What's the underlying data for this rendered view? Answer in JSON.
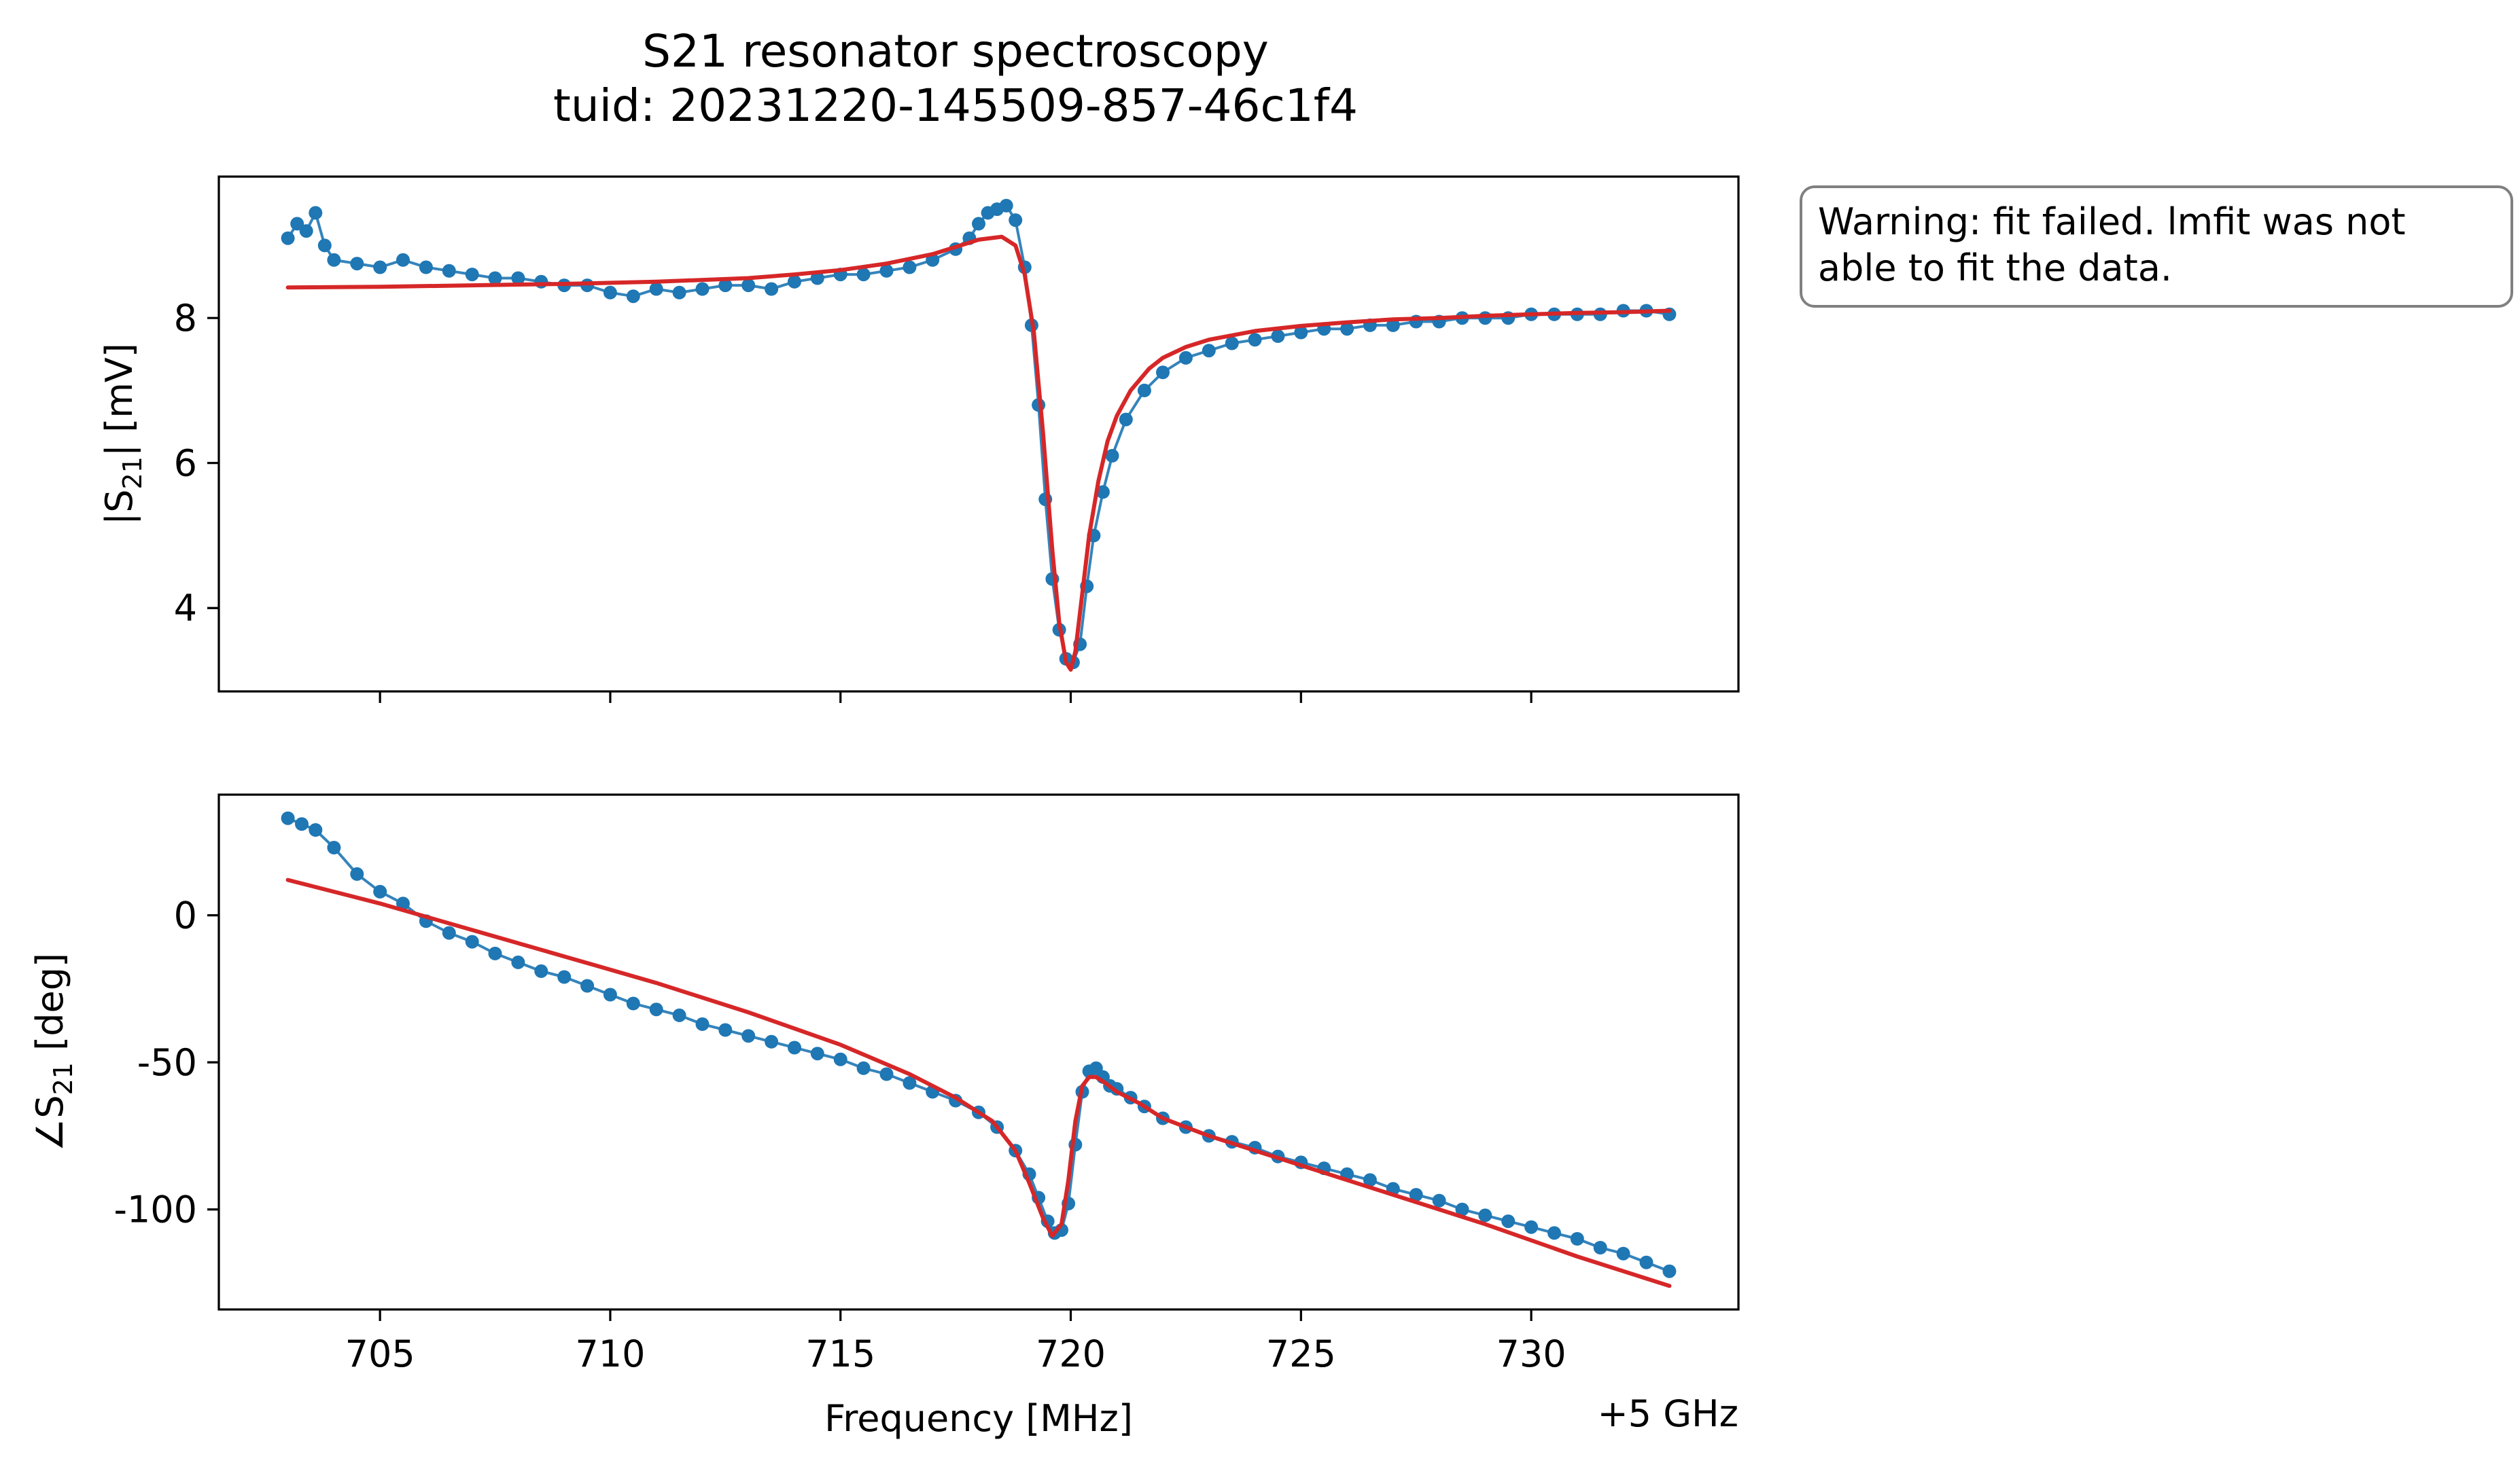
{
  "figure": {
    "title_line1": "S21 resonator spectroscopy",
    "title_line2": "tuid: 20231220-145509-857-46c1f4",
    "warning_line1": "Warning: fit failed. lmfit was not",
    "warning_line2": "able to fit the data.",
    "x_offset_label": "+5 GHz"
  },
  "chart_data": [
    {
      "type": "scatter",
      "panel": "top",
      "title": "",
      "xlabel": "",
      "ylabel_main": "|S",
      "ylabel_sub": "21",
      "ylabel_tail": "| [mV]",
      "xlim": [
        701.5,
        734.5
      ],
      "ylim": [
        2.85,
        9.95
      ],
      "xticks": [
        705,
        710,
        715,
        720,
        725,
        730
      ],
      "show_xticklabels": false,
      "yticks": [
        4,
        6,
        8
      ],
      "yticklabels": [
        "4",
        "6",
        "8"
      ],
      "grid": false,
      "series": [
        {
          "kind": "data",
          "color": "#1f77b4",
          "x": [
            703.0,
            703.2,
            703.4,
            703.6,
            703.8,
            704.0,
            704.5,
            705.0,
            705.5,
            706.0,
            706.5,
            707.0,
            707.5,
            708.0,
            708.5,
            709.0,
            709.5,
            710.0,
            710.5,
            711.0,
            711.5,
            712.0,
            712.5,
            713.0,
            713.5,
            714.0,
            714.5,
            715.0,
            715.5,
            716.0,
            716.5,
            717.0,
            717.5,
            717.8,
            718.0,
            718.2,
            718.4,
            718.6,
            718.8,
            719.0,
            719.15,
            719.3,
            719.45,
            719.6,
            719.75,
            719.9,
            720.05,
            720.2,
            720.35,
            720.5,
            720.7,
            720.9,
            721.2,
            721.6,
            722.0,
            722.5,
            723.0,
            723.5,
            724.0,
            724.5,
            725.0,
            725.5,
            726.0,
            726.5,
            727.0,
            727.5,
            728.0,
            728.5,
            729.0,
            729.5,
            730.0,
            730.5,
            731.0,
            731.5,
            732.0,
            732.5,
            733.0
          ],
          "y": [
            9.1,
            9.3,
            9.2,
            9.45,
            9.0,
            8.8,
            8.75,
            8.7,
            8.8,
            8.7,
            8.65,
            8.6,
            8.55,
            8.55,
            8.5,
            8.45,
            8.45,
            8.35,
            8.3,
            8.4,
            8.35,
            8.4,
            8.45,
            8.45,
            8.4,
            8.5,
            8.55,
            8.6,
            8.6,
            8.65,
            8.7,
            8.8,
            8.95,
            9.1,
            9.3,
            9.45,
            9.5,
            9.55,
            9.35,
            8.7,
            7.9,
            6.8,
            5.5,
            4.4,
            3.7,
            3.3,
            3.25,
            3.5,
            4.3,
            5.0,
            5.6,
            6.1,
            6.6,
            7.0,
            7.25,
            7.45,
            7.55,
            7.65,
            7.7,
            7.75,
            7.8,
            7.85,
            7.85,
            7.9,
            7.9,
            7.95,
            7.95,
            8.0,
            8.0,
            8.0,
            8.05,
            8.05,
            8.05,
            8.05,
            8.1,
            8.1,
            8.05
          ]
        },
        {
          "kind": "fit",
          "color": "#d62728",
          "x": [
            703.0,
            705.0,
            707.0,
            709.0,
            711.0,
            713.0,
            714.0,
            715.0,
            716.0,
            717.0,
            717.5,
            718.0,
            718.5,
            718.8,
            719.0,
            719.2,
            719.4,
            719.6,
            719.75,
            719.9,
            720.0,
            720.1,
            720.25,
            720.4,
            720.6,
            720.8,
            721.0,
            721.3,
            721.7,
            722.0,
            722.5,
            723.0,
            724.0,
            725.0,
            726.0,
            727.0,
            728.0,
            729.0,
            730.0,
            731.0,
            732.0,
            733.0
          ],
          "y": [
            8.42,
            8.43,
            8.45,
            8.47,
            8.5,
            8.55,
            8.6,
            8.66,
            8.75,
            8.88,
            8.98,
            9.08,
            9.12,
            9.0,
            8.6,
            7.8,
            6.4,
            4.8,
            3.8,
            3.25,
            3.15,
            3.4,
            4.2,
            5.0,
            5.75,
            6.3,
            6.65,
            7.0,
            7.3,
            7.45,
            7.6,
            7.7,
            7.82,
            7.89,
            7.94,
            7.98,
            8.0,
            8.03,
            8.05,
            8.07,
            8.08,
            8.1
          ]
        }
      ]
    },
    {
      "type": "scatter",
      "panel": "bottom",
      "title": "",
      "xlabel": "Frequency [MHz]",
      "ylabel_main": "∠S",
      "ylabel_sub": "21",
      "ylabel_tail": " [deg]",
      "xlim": [
        701.5,
        734.5
      ],
      "ylim": [
        -134,
        41
      ],
      "xticks": [
        705,
        710,
        715,
        720,
        725,
        730
      ],
      "xticklabels": [
        "705",
        "710",
        "715",
        "720",
        "725",
        "730"
      ],
      "show_xticklabels": true,
      "yticks": [
        0,
        -50,
        -100
      ],
      "yticklabels": [
        "0",
        "-50",
        "-100"
      ],
      "grid": false,
      "series": [
        {
          "kind": "data",
          "color": "#1f77b4",
          "x": [
            703.0,
            703.3,
            703.6,
            704.0,
            704.5,
            705.0,
            705.5,
            706.0,
            706.5,
            707.0,
            707.5,
            708.0,
            708.5,
            709.0,
            709.5,
            710.0,
            710.5,
            711.0,
            711.5,
            712.0,
            712.5,
            713.0,
            713.5,
            714.0,
            714.5,
            715.0,
            715.5,
            716.0,
            716.5,
            717.0,
            717.5,
            718.0,
            718.4,
            718.8,
            719.1,
            719.3,
            719.5,
            719.65,
            719.8,
            719.95,
            720.1,
            720.25,
            720.4,
            720.55,
            720.7,
            720.85,
            721.0,
            721.3,
            721.6,
            722.0,
            722.5,
            723.0,
            723.5,
            724.0,
            724.5,
            725.0,
            725.5,
            726.0,
            726.5,
            727.0,
            727.5,
            728.0,
            728.5,
            729.0,
            729.5,
            730.0,
            730.5,
            731.0,
            731.5,
            732.0,
            732.5,
            733.0
          ],
          "y": [
            33,
            31,
            29,
            23,
            14,
            8,
            4,
            -2,
            -6,
            -9,
            -13,
            -16,
            -19,
            -21,
            -24,
            -27,
            -30,
            -32,
            -34,
            -37,
            -39,
            -41,
            -43,
            -45,
            -47,
            -49,
            -52,
            -54,
            -57,
            -60,
            -63,
            -67,
            -72,
            -80,
            -88,
            -96,
            -104,
            -108,
            -107,
            -98,
            -78,
            -60,
            -53,
            -52,
            -55,
            -58,
            -59,
            -62,
            -65,
            -69,
            -72,
            -75,
            -77,
            -79,
            -82,
            -84,
            -86,
            -88,
            -90,
            -93,
            -95,
            -97,
            -100,
            -102,
            -104,
            -106,
            -108,
            -110,
            -113,
            -115,
            -118,
            -121
          ]
        },
        {
          "kind": "fit",
          "color": "#d62728",
          "x": [
            703.0,
            705.0,
            707.0,
            709.0,
            711.0,
            713.0,
            715.0,
            716.5,
            717.5,
            718.3,
            718.8,
            719.1,
            719.4,
            719.6,
            719.8,
            719.95,
            720.1,
            720.25,
            720.4,
            720.55,
            720.75,
            721.0,
            721.5,
            722.0,
            723.0,
            725.0,
            727.0,
            729.0,
            731.0,
            733.0
          ],
          "y": [
            12,
            4,
            -5,
            -14,
            -23,
            -33,
            -44,
            -54,
            -62,
            -70,
            -80,
            -91,
            -103,
            -109,
            -105,
            -90,
            -70,
            -58,
            -55,
            -55,
            -57,
            -60,
            -64,
            -69,
            -75,
            -85,
            -95,
            -105,
            -116,
            -126
          ]
        }
      ]
    }
  ]
}
